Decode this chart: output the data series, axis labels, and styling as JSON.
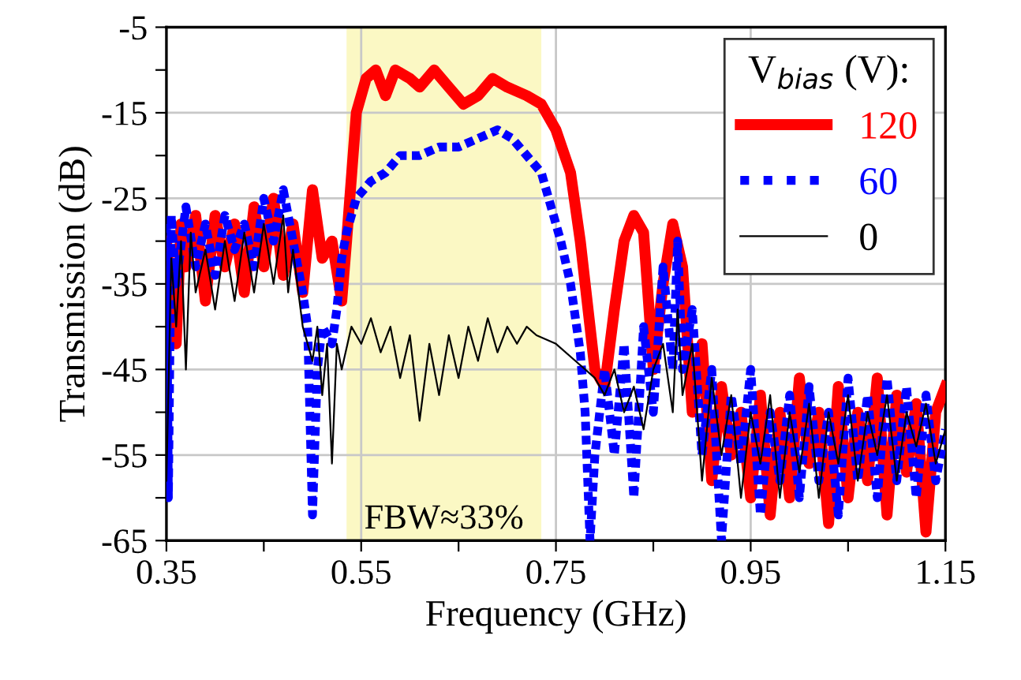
{
  "chart_data": {
    "type": "line",
    "xlabel": "Frequency (GHz)",
    "ylabel": "Transmission (dB)",
    "legend_title": "V$_{bias}$ (V):",
    "xlim": [
      0.35,
      1.15
    ],
    "ylim": [
      -65,
      -5
    ],
    "xticks": [
      0.35,
      {
        "value": 0.45,
        "label": null
      },
      0.55,
      {
        "value": 0.65,
        "label": null
      },
      0.75,
      {
        "value": 0.85,
        "label": null
      },
      0.95,
      {
        "value": 1.05,
        "label": null
      },
      1.15
    ],
    "yticks": [
      -65,
      {
        "value": -60,
        "label": null
      },
      -55,
      {
        "value": -50,
        "label": null
      },
      -45,
      {
        "value": -40,
        "label": null
      },
      -35,
      {
        "value": -30,
        "label": null
      },
      -25,
      {
        "value": -20,
        "label": null
      },
      -15,
      {
        "value": -10,
        "label": null
      },
      -5
    ],
    "grid": true,
    "legend": "top right",
    "bands": [
      {
        "axis": "x",
        "from": 0.535,
        "to": 0.735,
        "label": "FBW≈33%",
        "color": "#fbf8c4"
      }
    ],
    "series": [
      {
        "name": "120",
        "color": "#ff0000",
        "line_style": "solid",
        "x": [
          0.35,
          0.36,
          0.365,
          0.37,
          0.38,
          0.39,
          0.4,
          0.41,
          0.42,
          0.43,
          0.44,
          0.45,
          0.46,
          0.47,
          0.48,
          0.49,
          0.5,
          0.51,
          0.52,
          0.53,
          0.535,
          0.545,
          0.555,
          0.565,
          0.575,
          0.585,
          0.6,
          0.61,
          0.625,
          0.64,
          0.655,
          0.67,
          0.685,
          0.7,
          0.72,
          0.735,
          0.75,
          0.765,
          0.775,
          0.785,
          0.79,
          0.8,
          0.81,
          0.82,
          0.83,
          0.84,
          0.85,
          0.86,
          0.87,
          0.88,
          0.89,
          0.9,
          0.91,
          0.92,
          0.93,
          0.94,
          0.95,
          0.96,
          0.97,
          0.98,
          0.99,
          1.0,
          1.01,
          1.02,
          1.03,
          1.04,
          1.05,
          1.06,
          1.07,
          1.08,
          1.09,
          1.1,
          1.11,
          1.12,
          1.13,
          1.14,
          1.15
        ],
        "values": [
          -30,
          -42,
          -28,
          -33,
          -27,
          -37,
          -27,
          -33,
          -28,
          -36,
          -26,
          -33,
          -25,
          -34,
          -28,
          -36,
          -24,
          -32,
          -30,
          -37,
          -30,
          -15,
          -11,
          -10,
          -13,
          -10,
          -11,
          -12,
          -10,
          -12,
          -14,
          -13,
          -11,
          -12,
          -13,
          -14,
          -17,
          -22,
          -30,
          -40,
          -45,
          -47,
          -38,
          -30,
          -27,
          -29,
          -45,
          -35,
          -28,
          -33,
          -50,
          -42,
          -58,
          -47,
          -55,
          -50,
          -60,
          -48,
          -62,
          -50,
          -60,
          -46,
          -56,
          -50,
          -63,
          -47,
          -60,
          -50,
          -58,
          -46,
          -62,
          -48,
          -57,
          -49,
          -64,
          -50,
          -47
        ]
      },
      {
        "name": "60",
        "color": "#0000ff",
        "line_style": "dotted",
        "x": [
          0.35,
          0.352,
          0.355,
          0.36,
          0.37,
          0.38,
          0.39,
          0.4,
          0.41,
          0.42,
          0.43,
          0.44,
          0.45,
          0.46,
          0.47,
          0.48,
          0.49,
          0.495,
          0.5,
          0.505,
          0.51,
          0.52,
          0.525,
          0.53,
          0.535,
          0.545,
          0.56,
          0.575,
          0.59,
          0.61,
          0.63,
          0.65,
          0.67,
          0.69,
          0.705,
          0.72,
          0.735,
          0.745,
          0.755,
          0.765,
          0.775,
          0.78,
          0.785,
          0.79,
          0.8,
          0.81,
          0.82,
          0.83,
          0.84,
          0.85,
          0.86,
          0.87,
          0.875,
          0.88,
          0.89,
          0.9,
          0.91,
          0.92,
          0.93,
          0.94,
          0.95,
          0.96,
          0.97,
          0.98,
          0.99,
          1.0,
          1.01,
          1.02,
          1.03,
          1.04,
          1.05,
          1.06,
          1.07,
          1.08,
          1.09,
          1.1,
          1.11,
          1.12,
          1.13,
          1.14,
          1.15
        ],
        "values": [
          -28,
          -60,
          -27,
          -35,
          -26,
          -33,
          -28,
          -34,
          -27,
          -31,
          -28,
          -33,
          -25,
          -30,
          -24,
          -30,
          -36,
          -40,
          -62,
          -45,
          -40,
          -42,
          -38,
          -32,
          -29,
          -25,
          -23,
          -22,
          -20,
          -20,
          -19,
          -19,
          -18,
          -17,
          -18,
          -20,
          -22,
          -26,
          -30,
          -35,
          -43,
          -50,
          -65,
          -55,
          -45,
          -55,
          -42,
          -60,
          -40,
          -50,
          -33,
          -45,
          -30,
          -45,
          -38,
          -55,
          -45,
          -65,
          -48,
          -56,
          -45,
          -62,
          -50,
          -58,
          -48,
          -60,
          -47,
          -58,
          -50,
          -62,
          -46,
          -58,
          -48,
          -60,
          -46,
          -58,
          -47,
          -60,
          -48,
          -58,
          -52
        ]
      },
      {
        "name": "0",
        "color": "#000000",
        "line_style": "solid",
        "x": [
          0.35,
          0.355,
          0.36,
          0.365,
          0.37,
          0.375,
          0.38,
          0.39,
          0.4,
          0.41,
          0.42,
          0.43,
          0.44,
          0.45,
          0.46,
          0.47,
          0.475,
          0.48,
          0.49,
          0.5,
          0.505,
          0.51,
          0.515,
          0.52,
          0.525,
          0.53,
          0.54,
          0.55,
          0.56,
          0.57,
          0.58,
          0.59,
          0.6,
          0.61,
          0.62,
          0.63,
          0.64,
          0.65,
          0.66,
          0.67,
          0.68,
          0.69,
          0.7,
          0.71,
          0.72,
          0.73,
          0.75,
          0.77,
          0.79,
          0.8,
          0.81,
          0.82,
          0.83,
          0.84,
          0.85,
          0.86,
          0.87,
          0.875,
          0.88,
          0.89,
          0.9,
          0.91,
          0.92,
          0.93,
          0.94,
          0.95,
          0.96,
          0.97,
          0.98,
          0.99,
          1.0,
          1.01,
          1.02,
          1.03,
          1.04,
          1.05,
          1.06,
          1.07,
          1.08,
          1.09,
          1.1,
          1.11,
          1.12,
          1.13,
          1.14,
          1.15
        ],
        "values": [
          -58,
          -32,
          -40,
          -30,
          -45,
          -29,
          -36,
          -31,
          -38,
          -30,
          -37,
          -29,
          -36,
          -28,
          -35,
          -27,
          -36,
          -31,
          -40,
          -44,
          -40,
          -48,
          -42,
          -56,
          -42,
          -45,
          -40,
          -42,
          -39,
          -43,
          -40,
          -46,
          -41,
          -51,
          -42,
          -48,
          -41,
          -46,
          -40,
          -44,
          -39,
          -43,
          -40,
          -42,
          -40,
          -41,
          -42,
          -44,
          -46,
          -48,
          -45,
          -50,
          -47,
          -52,
          -45,
          -42,
          -50,
          -38,
          -48,
          -42,
          -58,
          -46,
          -55,
          -48,
          -60,
          -50,
          -56,
          -48,
          -60,
          -50,
          -57,
          -49,
          -60,
          -50,
          -56,
          -48,
          -58,
          -50,
          -55,
          -48,
          -58,
          -50,
          -54,
          -49,
          -56,
          -52
        ]
      }
    ]
  }
}
